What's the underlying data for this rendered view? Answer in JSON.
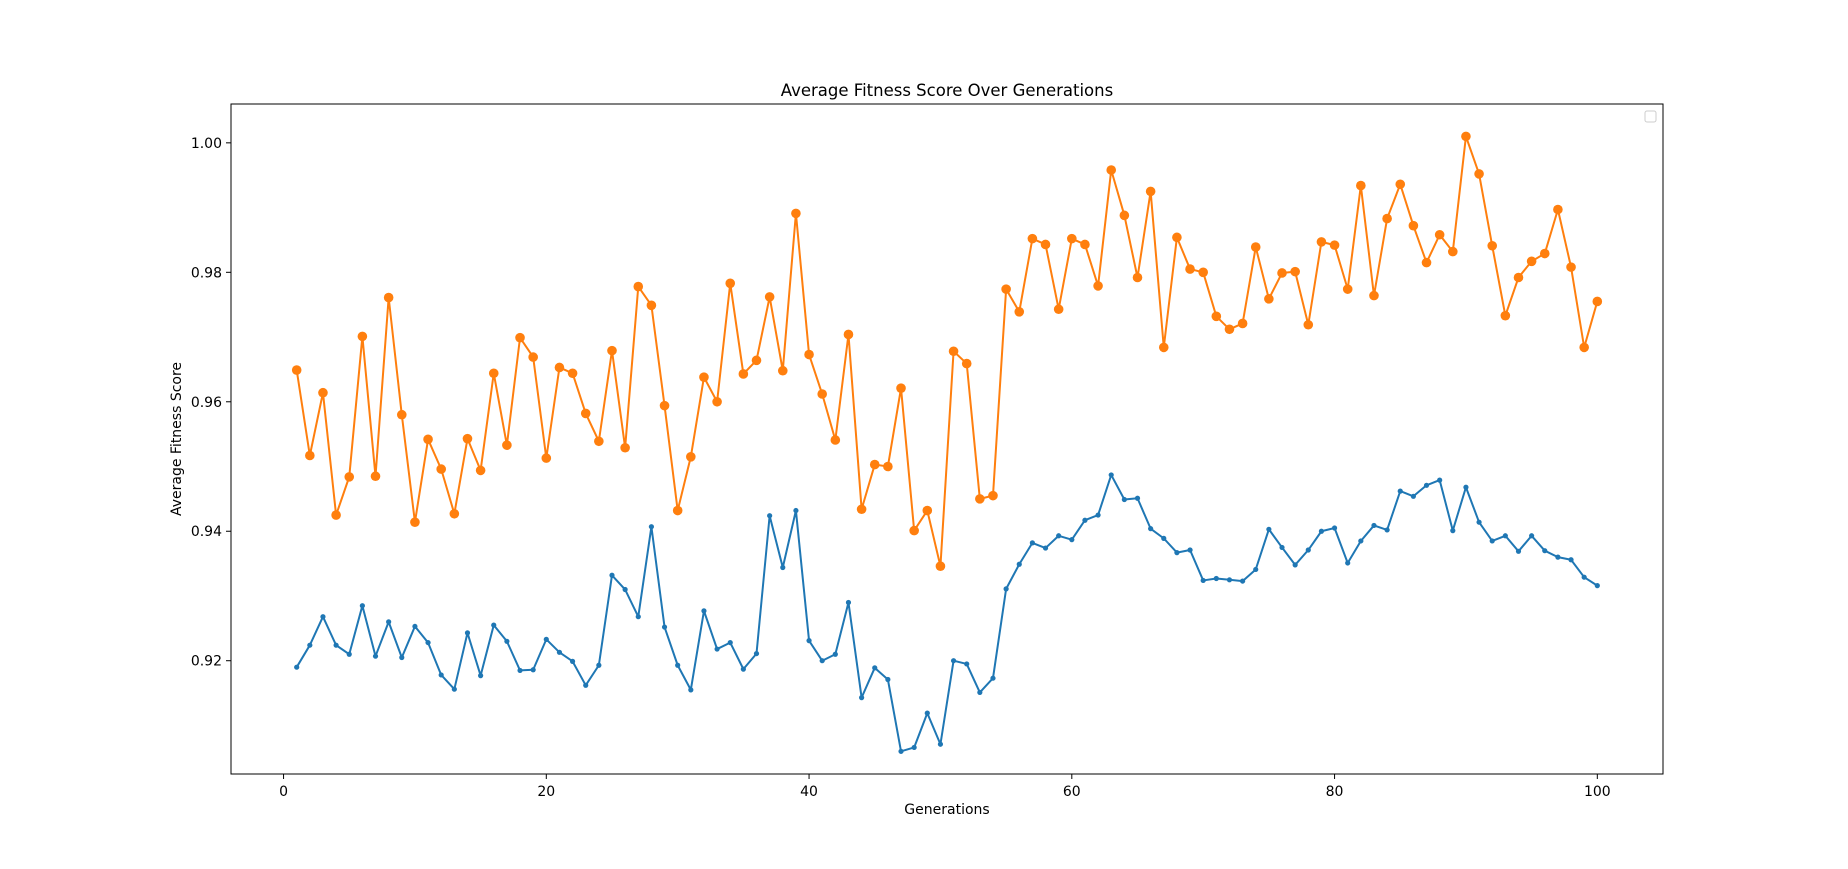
{
  "chart_data": {
    "type": "line",
    "title": "Average Fitness Score Over Generations",
    "xlabel": "Generations",
    "ylabel": "Average Fitness Score",
    "xlim": [
      -4,
      105
    ],
    "ylim": [
      0.9025,
      1.006
    ],
    "xticks": [
      0,
      20,
      40,
      60,
      80,
      100
    ],
    "yticks": [
      0.92,
      0.94,
      0.96,
      0.98,
      1.0
    ],
    "ytick_labels": [
      "0.92",
      "0.94",
      "0.96",
      "0.98",
      "1.00"
    ],
    "grid": false,
    "legend": {
      "location": "top-right",
      "entries": []
    },
    "x": [
      1,
      2,
      3,
      4,
      5,
      6,
      7,
      8,
      9,
      10,
      11,
      12,
      13,
      14,
      15,
      16,
      17,
      18,
      19,
      20,
      21,
      22,
      23,
      24,
      25,
      26,
      27,
      28,
      29,
      30,
      31,
      32,
      33,
      34,
      35,
      36,
      37,
      38,
      39,
      40,
      41,
      42,
      43,
      44,
      45,
      46,
      47,
      48,
      49,
      50,
      51,
      52,
      53,
      54,
      55,
      56,
      57,
      58,
      59,
      60,
      61,
      62,
      63,
      64,
      65,
      66,
      67,
      68,
      69,
      70,
      71,
      72,
      73,
      74,
      75,
      76,
      77,
      78,
      79,
      80,
      81,
      82,
      83,
      84,
      85,
      86,
      87,
      88,
      89,
      90,
      91,
      92,
      93,
      94,
      95,
      96,
      97,
      98,
      99,
      100
    ],
    "series": [
      {
        "color": "#1f77b4",
        "marker": "small-circle",
        "values": [
          0.919,
          0.9224,
          0.9268,
          0.9224,
          0.921,
          0.9285,
          0.9207,
          0.926,
          0.9205,
          0.9253,
          0.9228,
          0.9178,
          0.9156,
          0.9243,
          0.9177,
          0.9255,
          0.923,
          0.9185,
          0.9186,
          0.9233,
          0.9213,
          0.9199,
          0.9162,
          0.9193,
          0.9332,
          0.931,
          0.9268,
          0.9407,
          0.9252,
          0.9193,
          0.9155,
          0.9277,
          0.9218,
          0.9228,
          0.9187,
          0.9211,
          0.9424,
          0.9344,
          0.9432,
          0.9231,
          0.92,
          0.921,
          0.929,
          0.9143,
          0.9189,
          0.9171,
          0.906,
          0.9066,
          0.9119,
          0.9071,
          0.92,
          0.9195,
          0.9151,
          0.9173,
          0.9311,
          0.9349,
          0.9382,
          0.9374,
          0.9393,
          0.9387,
          0.9417,
          0.9425,
          0.9487,
          0.9449,
          0.9451,
          0.9404,
          0.9389,
          0.9367,
          0.9371,
          0.9324,
          0.9327,
          0.9325,
          0.9323,
          0.9341,
          0.9403,
          0.9375,
          0.9348,
          0.9371,
          0.94,
          0.9405,
          0.9351,
          0.9385,
          0.9409,
          0.9402,
          0.9462,
          0.9454,
          0.9471,
          0.9479,
          0.9401,
          0.9468,
          0.9414,
          0.9385,
          0.9393,
          0.9369,
          0.9393,
          0.937,
          0.936,
          0.9356,
          0.9329,
          0.9316
        ]
      },
      {
        "color": "#ff7f0e",
        "marker": "circle",
        "values": [
          0.9649,
          0.9517,
          0.9614,
          0.9425,
          0.9484,
          0.9701,
          0.9485,
          0.9761,
          0.958,
          0.9414,
          0.9542,
          0.9496,
          0.9427,
          0.9543,
          0.9494,
          0.9644,
          0.9533,
          0.9699,
          0.9669,
          0.9513,
          0.9653,
          0.9644,
          0.9582,
          0.9539,
          0.9679,
          0.9529,
          0.9778,
          0.9749,
          0.9594,
          0.9432,
          0.9515,
          0.9638,
          0.96,
          0.9783,
          0.9643,
          0.9664,
          0.9762,
          0.9648,
          0.9891,
          0.9673,
          0.9612,
          0.9541,
          0.9704,
          0.9434,
          0.9503,
          0.95,
          0.9621,
          0.9401,
          0.9432,
          0.9346,
          0.9678,
          0.9659,
          0.945,
          0.9455,
          0.9774,
          0.9739,
          0.9852,
          0.9843,
          0.9743,
          0.9852,
          0.9843,
          0.9779,
          0.9958,
          0.9888,
          0.9792,
          0.9925,
          0.9684,
          0.9854,
          0.9805,
          0.98,
          0.9732,
          0.9712,
          0.9721,
          0.9839,
          0.9759,
          0.9799,
          0.9801,
          0.9719,
          0.9847,
          0.9842,
          0.9774,
          0.9934,
          0.9764,
          0.9883,
          0.9936,
          0.9872,
          0.9815,
          0.9858,
          0.9832,
          1.001,
          0.9952,
          0.9841,
          0.9733,
          0.9792,
          0.9817,
          0.9829,
          0.9897,
          0.9808,
          0.9684,
          0.9755
        ]
      }
    ]
  }
}
